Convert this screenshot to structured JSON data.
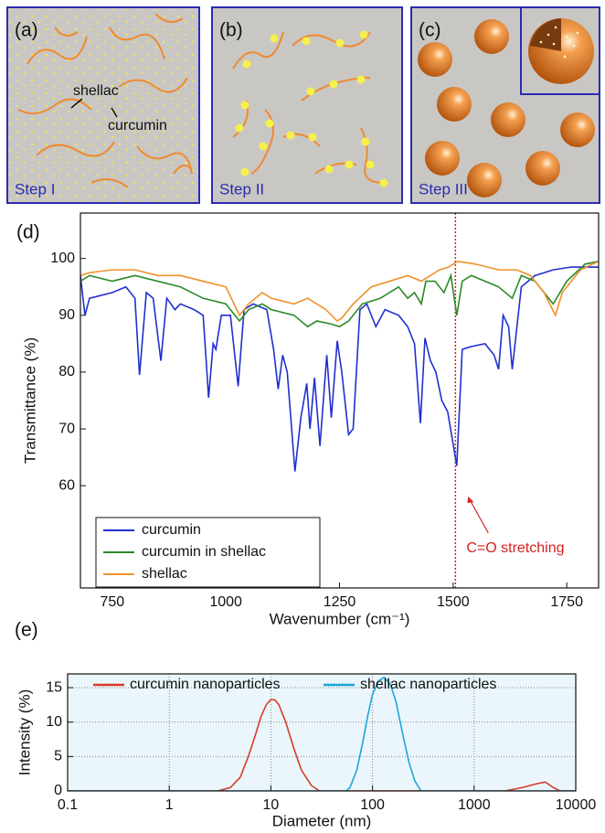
{
  "schematic": {
    "panel_a": {
      "label": "(a)",
      "shellac": "shellac",
      "curcumin": "curcumin",
      "step": "Step I"
    },
    "panel_b": {
      "label": "(b)",
      "step": "Step II"
    },
    "panel_c": {
      "label": "(c)",
      "step": "Step III"
    }
  },
  "chart_data": [
    {
      "type": "line",
      "panel_label": "(d)",
      "x_label": "Wavenumber (cm⁻¹)",
      "y_label": "Transmittance (%)",
      "xlim": [
        680,
        1820
      ],
      "xticks": [
        750,
        1000,
        1250,
        1500,
        1750
      ],
      "ylim": [
        42,
        108
      ],
      "yticks": [
        60,
        70,
        80,
        90,
        100
      ],
      "grid": false,
      "log_x": false,
      "legend": "lower left",
      "vline": 1505,
      "vline_color": "#d42020",
      "annotation": "C=O stretching",
      "series": [
        {
          "name": "curcumin",
          "color": "#1f2fd0",
          "x": [
            680,
            690,
            700,
            750,
            780,
            800,
            810,
            825,
            840,
            857,
            870,
            888,
            900,
            930,
            950,
            962,
            972,
            978,
            990,
            1010,
            1027,
            1040,
            1060,
            1090,
            1105,
            1115,
            1125,
            1135,
            1152,
            1165,
            1178,
            1185,
            1195,
            1207,
            1222,
            1232,
            1245,
            1255,
            1270,
            1280,
            1295,
            1310,
            1330,
            1350,
            1380,
            1400,
            1415,
            1428,
            1438,
            1450,
            1462,
            1475,
            1488,
            1508,
            1520,
            1540,
            1570,
            1590,
            1600,
            1610,
            1622,
            1630,
            1650,
            1680,
            1720,
            1760,
            1820
          ],
          "values": [
            97,
            90,
            93,
            94,
            95,
            93,
            79.5,
            94,
            93,
            82,
            93,
            91,
            92,
            91,
            90,
            75.5,
            85,
            84,
            90,
            90,
            77.5,
            91,
            92,
            91,
            84,
            77,
            83,
            80,
            62.5,
            72,
            78,
            70,
            79,
            67,
            83,
            72,
            85.5,
            80,
            69,
            70,
            91,
            92,
            88,
            91,
            90,
            88,
            85,
            71,
            86,
            82,
            80,
            75,
            73,
            63.5,
            84,
            84.5,
            85,
            83,
            80.5,
            90,
            88,
            80.5,
            95,
            97,
            98,
            98.5,
            98.5
          ]
        },
        {
          "name": "curcumin in shellac",
          "color": "#2a8a2a",
          "x": [
            680,
            700,
            750,
            800,
            850,
            900,
            950,
            1000,
            1030,
            1050,
            1080,
            1100,
            1150,
            1180,
            1200,
            1230,
            1250,
            1270,
            1300,
            1340,
            1380,
            1400,
            1415,
            1430,
            1440,
            1460,
            1480,
            1495,
            1508,
            1520,
            1540,
            1570,
            1600,
            1630,
            1650,
            1680,
            1710,
            1720,
            1750,
            1790,
            1820
          ],
          "values": [
            96,
            97,
            96,
            97,
            96,
            95,
            93,
            92,
            89,
            91,
            92,
            91,
            90,
            88,
            89,
            88.5,
            88,
            89,
            92,
            93,
            95,
            93,
            94,
            92,
            96,
            96,
            94,
            97,
            90,
            96,
            97,
            96,
            95,
            93,
            97,
            96,
            93,
            92,
            96,
            99,
            99.5
          ]
        },
        {
          "name": "shellac",
          "color": "#f0902a",
          "x": [
            680,
            700,
            750,
            800,
            850,
            900,
            950,
            1000,
            1030,
            1050,
            1080,
            1100,
            1150,
            1180,
            1220,
            1245,
            1255,
            1280,
            1320,
            1360,
            1400,
            1430,
            1470,
            1490,
            1510,
            1550,
            1600,
            1640,
            1670,
            1700,
            1725,
            1740,
            1780,
            1820
          ],
          "values": [
            97,
            97.5,
            98,
            98,
            97,
            97,
            96,
            95,
            90,
            92,
            94,
            93,
            92,
            93,
            91,
            89,
            89.5,
            92,
            95,
            96,
            97,
            96,
            98,
            98.5,
            99.5,
            99,
            98,
            98,
            97,
            94,
            90,
            94,
            98,
            99.5
          ]
        }
      ]
    },
    {
      "type": "line",
      "panel_label": "(e)",
      "x_label": "Diameter (nm)",
      "y_label": "Intensity (%)",
      "xlim": [
        0.1,
        10000
      ],
      "xticks": [
        0.1,
        1,
        10,
        100,
        1000,
        10000
      ],
      "ylim": [
        0,
        17
      ],
      "yticks": [
        0,
        5,
        10,
        15
      ],
      "grid": true,
      "log_x": true,
      "legend": "upper center",
      "background": "#eaf6fb",
      "series": [
        {
          "name": "curcumin nanoparticles",
          "color": "#d83a2a",
          "x": [
            0.1,
            3,
            4,
            5,
            6,
            7,
            8,
            9,
            10,
            11,
            12,
            14,
            17,
            20,
            25,
            30,
            2000,
            3000,
            4000,
            5000,
            6000,
            7000,
            10000
          ],
          "values": [
            0,
            0,
            0.5,
            2,
            5,
            8,
            10.8,
            12.5,
            13.3,
            13.2,
            12.5,
            10,
            6,
            3,
            0.8,
            0,
            0,
            0.5,
            1,
            1.3,
            0.5,
            0,
            0
          ]
        },
        {
          "name": "shellac nanoparticles",
          "color": "#1aa6d8",
          "x": [
            0.1,
            55,
            60,
            70,
            80,
            90,
            100,
            115,
            130,
            150,
            170,
            200,
            230,
            260,
            300,
            10000
          ],
          "values": [
            0,
            0,
            0.5,
            3,
            7,
            11,
            14,
            16,
            16.5,
            15.5,
            13,
            8,
            4,
            1.5,
            0,
            0
          ]
        }
      ]
    }
  ]
}
